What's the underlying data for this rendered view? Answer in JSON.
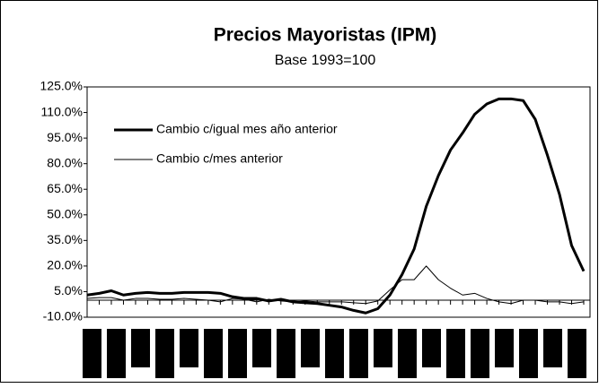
{
  "chart_data": {
    "type": "line",
    "title": "Precios Mayoristas (IPM)",
    "subtitle": "Base 1993=100",
    "categories": [
      null,
      null,
      null,
      null,
      null,
      null,
      null,
      null,
      null,
      null,
      null,
      null,
      null,
      null,
      null,
      null,
      null,
      null,
      null,
      null,
      null,
      null,
      null,
      null,
      null,
      null,
      null,
      null,
      null,
      null,
      null,
      null,
      null,
      null,
      null,
      null,
      null,
      null,
      null,
      null,
      null,
      null
    ],
    "series": [
      {
        "name": "Cambio c/igual mes año anterior",
        "color": "#000000",
        "width": 3,
        "values": [
          3,
          4,
          5.5,
          3,
          4,
          4.5,
          4,
          4,
          4.5,
          4.5,
          4.5,
          4,
          2,
          1,
          1,
          -0.5,
          0.5,
          -1,
          -1.5,
          -2,
          -3,
          -4,
          -6,
          -7.5,
          -5,
          3,
          15,
          30,
          55,
          73,
          88,
          98,
          109,
          115,
          118,
          118,
          117,
          106,
          85,
          62,
          32,
          17
        ]
      },
      {
        "name": "Cambio c/mes anterior",
        "color": "#000000",
        "width": 1,
        "values": [
          1,
          1.5,
          1.5,
          0,
          1,
          1,
          0.5,
          0.5,
          1,
          0.5,
          0,
          -1,
          1,
          0.5,
          -1,
          0.5,
          -0.5,
          -1,
          -0.5,
          -1,
          -1,
          -1,
          -1.5,
          -2,
          -0.5,
          6,
          12,
          12,
          20,
          12,
          7,
          3,
          4,
          1,
          -1,
          -2,
          0,
          0,
          -1,
          -1,
          -2,
          -1
        ]
      }
    ],
    "ylim": [
      -10,
      125
    ],
    "yticks": [
      {
        "value": -10,
        "label": "-10.0%"
      },
      {
        "value": 5,
        "label": "5.0%"
      },
      {
        "value": 20,
        "label": "20.0%"
      },
      {
        "value": 35,
        "label": "35.0%"
      },
      {
        "value": 50,
        "label": "50.0%"
      },
      {
        "value": 65,
        "label": "65.0%"
      },
      {
        "value": 80,
        "label": "80.0%"
      },
      {
        "value": 95,
        "label": "95.0%"
      },
      {
        "value": 110,
        "label": "110.0%"
      },
      {
        "value": 125,
        "label": "125.0%"
      }
    ],
    "legend": "upper left"
  }
}
